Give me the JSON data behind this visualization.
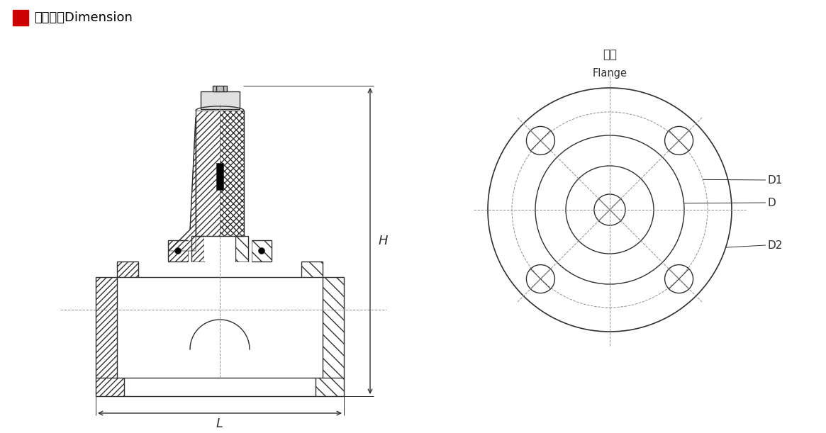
{
  "title": "外型尺寸Dimension",
  "title_color": "#000000",
  "background_color": "#ffffff",
  "line_color": "#303030",
  "dashed_color": "#909090",
  "red_square": "#cc0000",
  "label_H": "H",
  "label_L": "L",
  "label_D": "D",
  "label_D1": "D1",
  "label_D2": "D2",
  "label_flange_cn": "法兰",
  "label_flange_en": "Flange"
}
